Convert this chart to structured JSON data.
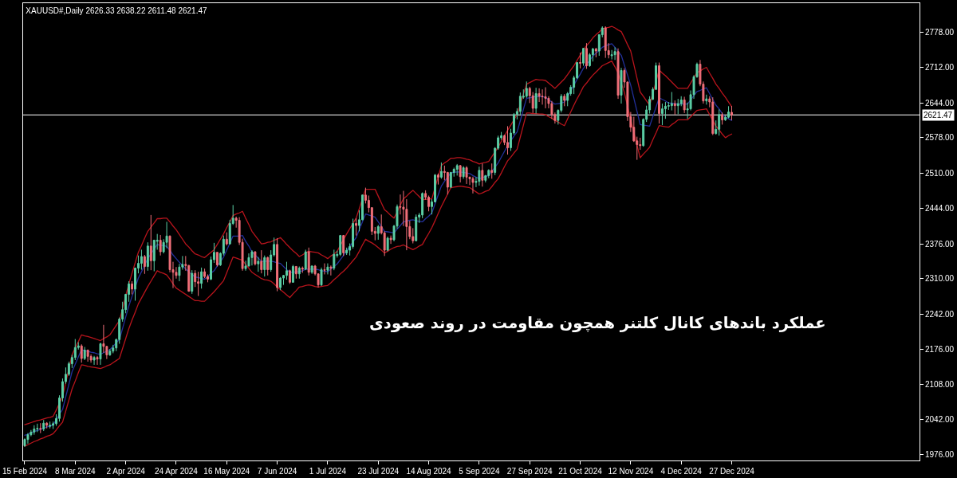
{
  "chart_data": {
    "type": "candlestick",
    "title": "XAUUSD#,Daily 2626.33 2638.22 2611.48 2621.47",
    "categories": [
      "15 Feb 2024",
      null,
      null,
      null,
      null,
      null,
      null,
      null,
      null,
      null,
      null,
      null,
      null,
      null,
      null,
      null,
      "8 Mar 2024",
      null,
      null,
      null,
      null,
      null,
      null,
      null,
      null,
      null,
      null,
      null,
      null,
      null,
      null,
      null,
      "2 Apr 2024",
      null,
      null,
      null,
      null,
      null,
      null,
      null,
      null,
      null,
      null,
      null,
      null,
      null,
      null,
      null,
      "24 Apr 2024",
      null,
      null,
      null,
      null,
      null,
      null,
      null,
      null,
      null,
      null,
      null,
      null,
      null,
      null,
      null,
      "16 May 2024",
      null,
      null,
      null,
      null,
      null,
      null,
      null,
      null,
      null,
      null,
      null,
      null,
      null,
      null,
      null,
      "7 Jun 2024",
      null,
      null,
      null,
      null,
      null,
      null,
      null,
      null,
      null,
      null,
      null,
      null,
      null,
      null,
      null,
      "1 Jul 2024",
      null,
      null,
      null,
      null,
      null,
      null,
      null,
      null,
      null,
      null,
      null,
      null,
      null,
      null,
      null,
      "23 Jul 2024",
      null,
      null,
      null,
      null,
      null,
      null,
      null,
      null,
      null,
      null,
      null,
      null,
      null,
      null,
      null,
      "14 Aug 2024",
      null,
      null,
      null,
      null,
      null,
      null,
      null,
      null,
      null,
      null,
      null,
      null,
      null,
      null,
      null,
      "5 Sep 2024",
      null,
      null,
      null,
      null,
      null,
      null,
      null,
      null,
      null,
      null,
      null,
      null,
      null,
      null,
      null,
      "27 Sep 2024",
      null,
      null,
      null,
      null,
      null,
      null,
      null,
      null,
      null,
      null,
      null,
      null,
      null,
      null,
      null,
      "21 Oct 2024",
      null,
      null,
      null,
      null,
      null,
      null,
      null,
      null,
      null,
      null,
      null,
      null,
      null,
      null,
      null,
      "12 Nov 2024",
      null,
      null,
      null,
      null,
      null,
      null,
      null,
      null,
      null,
      null,
      null,
      null,
      null,
      null,
      null,
      "4 Dec 2024",
      null,
      null,
      null,
      null,
      null,
      null,
      null,
      null,
      null,
      null,
      null,
      null,
      null,
      null,
      null,
      "27 Dec 2024"
    ],
    "ohlc": [
      [
        1992,
        2006,
        1990,
        2004
      ],
      [
        2004,
        2016,
        1996,
        2013
      ],
      [
        2013,
        2022,
        2010,
        2018
      ],
      [
        2018,
        2031,
        2013,
        2024
      ],
      [
        2024,
        2034,
        2018,
        2025
      ],
      [
        2025,
        2035,
        2016,
        2024
      ],
      [
        2024,
        2041,
        2020,
        2035
      ],
      [
        2035,
        2037,
        2025,
        2031
      ],
      [
        2029,
        2038,
        2025,
        2031
      ],
      [
        2031,
        2038,
        2024,
        2034
      ],
      [
        2034,
        2052,
        2030,
        2044
      ],
      [
        2044,
        2088,
        2038,
        2083
      ],
      [
        2083,
        2120,
        2076,
        2114
      ],
      [
        2114,
        2141,
        2110,
        2128
      ],
      [
        2128,
        2152,
        2125,
        2148
      ],
      [
        2148,
        2165,
        2140,
        2160
      ],
      [
        2160,
        2195,
        2155,
        2179
      ],
      [
        2179,
        2189,
        2175,
        2182
      ],
      [
        2182,
        2185,
        2150,
        2158
      ],
      [
        2158,
        2180,
        2155,
        2174
      ],
      [
        2174,
        2175,
        2152,
        2162
      ],
      [
        2162,
        2166,
        2150,
        2155
      ],
      [
        2155,
        2163,
        2146,
        2160
      ],
      [
        2160,
        2163,
        2146,
        2157
      ],
      [
        2157,
        2188,
        2146,
        2186
      ],
      [
        2186,
        2222,
        2169,
        2181
      ],
      [
        2181,
        2182,
        2157,
        2165
      ],
      [
        2165,
        2176,
        2163,
        2172
      ],
      [
        2172,
        2184,
        2168,
        2178
      ],
      [
        2178,
        2196,
        2172,
        2194
      ],
      [
        2194,
        2236,
        2186,
        2233
      ],
      [
        2233,
        2266,
        2228,
        2251
      ],
      [
        2251,
        2281,
        2244,
        2280
      ],
      [
        2280,
        2305,
        2266,
        2300
      ],
      [
        2300,
        2305,
        2280,
        2290
      ],
      [
        2290,
        2331,
        2268,
        2330
      ],
      [
        2330,
        2354,
        2320,
        2339
      ],
      [
        2339,
        2365,
        2327,
        2352
      ],
      [
        2352,
        2355,
        2319,
        2333
      ],
      [
        2333,
        2379,
        2325,
        2372
      ],
      [
        2372,
        2431,
        2326,
        2344
      ],
      [
        2344,
        2384,
        2324,
        2383
      ],
      [
        2381,
        2395,
        2365,
        2383
      ],
      [
        2383,
        2393,
        2354,
        2361
      ],
      [
        2361,
        2385,
        2358,
        2379
      ],
      [
        2379,
        2418,
        2368,
        2391
      ],
      [
        2391,
        2392,
        2322,
        2327
      ],
      [
        2327,
        2342,
        2292,
        2322
      ],
      [
        2322,
        2332,
        2310,
        2316
      ],
      [
        2316,
        2338,
        2305,
        2332
      ],
      [
        2332,
        2353,
        2327,
        2337
      ],
      [
        2337,
        2353,
        2325,
        2335
      ],
      [
        2335,
        2336,
        2285,
        2286
      ],
      [
        2286,
        2326,
        2281,
        2320
      ],
      [
        2320,
        2326,
        2294,
        2304
      ],
      [
        2304,
        2323,
        2277,
        2301
      ],
      [
        2301,
        2331,
        2291,
        2323
      ],
      [
        2323,
        2329,
        2311,
        2314
      ],
      [
        2314,
        2318,
        2303,
        2309
      ],
      [
        2309,
        2352,
        2307,
        2346
      ],
      [
        2346,
        2378,
        2340,
        2360
      ],
      [
        2360,
        2361,
        2333,
        2336
      ],
      [
        2336,
        2360,
        2334,
        2358
      ],
      [
        2358,
        2392,
        2354,
        2385
      ],
      [
        2385,
        2398,
        2373,
        2376
      ],
      [
        2376,
        2422,
        2375,
        2415
      ],
      [
        2415,
        2450,
        2412,
        2425
      ],
      [
        2425,
        2428,
        2407,
        2421
      ],
      [
        2421,
        2427,
        2374,
        2379
      ],
      [
        2379,
        2386,
        2325,
        2329
      ],
      [
        2329,
        2344,
        2325,
        2334
      ],
      [
        2334,
        2358,
        2333,
        2350
      ],
      [
        2350,
        2364,
        2335,
        2361
      ],
      [
        2361,
        2362,
        2335,
        2338
      ],
      [
        2338,
        2351,
        2323,
        2343
      ],
      [
        2343,
        2364,
        2320,
        2327
      ],
      [
        2327,
        2354,
        2314,
        2350
      ],
      [
        2350,
        2352,
        2316,
        2327
      ],
      [
        2327,
        2364,
        2323,
        2355
      ],
      [
        2355,
        2388,
        2352,
        2375
      ],
      [
        2375,
        2387,
        2286,
        2293
      ],
      [
        2293,
        2313,
        2288,
        2311
      ],
      [
        2311,
        2317,
        2298,
        2316
      ],
      [
        2316,
        2342,
        2308,
        2325
      ],
      [
        2325,
        2327,
        2300,
        2303
      ],
      [
        2303,
        2336,
        2302,
        2333
      ],
      [
        2333,
        2334,
        2310,
        2319
      ],
      [
        2319,
        2333,
        2310,
        2330
      ],
      [
        2330,
        2333,
        2321,
        2328
      ],
      [
        2328,
        2365,
        2326,
        2361
      ],
      [
        2361,
        2369,
        2316,
        2322
      ],
      [
        2322,
        2335,
        2319,
        2334
      ],
      [
        2334,
        2336,
        2316,
        2319
      ],
      [
        2319,
        2320,
        2293,
        2298
      ],
      [
        2298,
        2331,
        2296,
        2327
      ],
      [
        2327,
        2339,
        2318,
        2326
      ],
      [
        2326,
        2339,
        2318,
        2332
      ],
      [
        2332,
        2335,
        2316,
        2330
      ],
      [
        2330,
        2365,
        2326,
        2356
      ],
      [
        2354,
        2363,
        2350,
        2356
      ],
      [
        2356,
        2393,
        2353,
        2392
      ],
      [
        2392,
        2393,
        2353,
        2359
      ],
      [
        2359,
        2369,
        2355,
        2364
      ],
      [
        2364,
        2377,
        2354,
        2371
      ],
      [
        2371,
        2424,
        2367,
        2415
      ],
      [
        2415,
        2425,
        2392,
        2411
      ],
      [
        2411,
        2440,
        2400,
        2422
      ],
      [
        2422,
        2470,
        2421,
        2469
      ],
      [
        2469,
        2483,
        2453,
        2459
      ],
      [
        2459,
        2468,
        2436,
        2445
      ],
      [
        2445,
        2446,
        2393,
        2400
      ],
      [
        2400,
        2408,
        2383,
        2396
      ],
      [
        2396,
        2412,
        2384,
        2409
      ],
      [
        2409,
        2432,
        2394,
        2397
      ],
      [
        2397,
        2400,
        2353,
        2364
      ],
      [
        2364,
        2390,
        2362,
        2387
      ],
      [
        2387,
        2392,
        2376,
        2384
      ],
      [
        2384,
        2412,
        2381,
        2410
      ],
      [
        2410,
        2451,
        2405,
        2447
      ],
      [
        2447,
        2470,
        2432,
        2446
      ],
      [
        2446,
        2477,
        2410,
        2442
      ],
      [
        2442,
        2461,
        2364,
        2409
      ],
      [
        2409,
        2420,
        2385,
        2390
      ],
      [
        2390,
        2406,
        2377,
        2382
      ],
      [
        2382,
        2432,
        2381,
        2427
      ],
      [
        2427,
        2435,
        2416,
        2431
      ],
      [
        2431,
        2474,
        2425,
        2472
      ],
      [
        2472,
        2478,
        2460,
        2465
      ],
      [
        2465,
        2468,
        2438,
        2447
      ],
      [
        2447,
        2461,
        2432,
        2456
      ],
      [
        2456,
        2509,
        2455,
        2507
      ],
      [
        2507,
        2510,
        2489,
        2503
      ],
      [
        2503,
        2531,
        2500,
        2514
      ],
      [
        2514,
        2525,
        2497,
        2512
      ],
      [
        2512,
        2513,
        2470,
        2484
      ],
      [
        2484,
        2513,
        2482,
        2512
      ],
      [
        2512,
        2521,
        2504,
        2518
      ],
      [
        2518,
        2528,
        2506,
        2525
      ],
      [
        2525,
        2526,
        2493,
        2504
      ],
      [
        2504,
        2524,
        2500,
        2521
      ],
      [
        2521,
        2524,
        2490,
        2503
      ],
      [
        2503,
        2504,
        2488,
        2500
      ],
      [
        2500,
        2504,
        2472,
        2493
      ],
      [
        2493,
        2503,
        2484,
        2495
      ],
      [
        2495,
        2523,
        2487,
        2516
      ],
      [
        2516,
        2529,
        2485,
        2497
      ],
      [
        2497,
        2507,
        2493,
        2506
      ],
      [
        2506,
        2518,
        2501,
        2516
      ],
      [
        2516,
        2529,
        2500,
        2512
      ],
      [
        2512,
        2560,
        2507,
        2558
      ],
      [
        2558,
        2582,
        2555,
        2578
      ],
      [
        2578,
        2589,
        2574,
        2582
      ],
      [
        2582,
        2584,
        2564,
        2569
      ],
      [
        2569,
        2600,
        2546,
        2559
      ],
      [
        2559,
        2595,
        2553,
        2587
      ],
      [
        2587,
        2625,
        2584,
        2622
      ],
      [
        2622,
        2634,
        2613,
        2628
      ],
      [
        2628,
        2664,
        2622,
        2657
      ],
      [
        2655,
        2670,
        2652,
        2657
      ],
      [
        2657,
        2685,
        2654,
        2672
      ],
      [
        2672,
        2675,
        2644,
        2658
      ],
      [
        2658,
        2665,
        2625,
        2634
      ],
      [
        2634,
        2673,
        2624,
        2662
      ],
      [
        2662,
        2672,
        2646,
        2657
      ],
      [
        2657,
        2670,
        2641,
        2656
      ],
      [
        2656,
        2674,
        2634,
        2653
      ],
      [
        2653,
        2657,
        2634,
        2643
      ],
      [
        2643,
        2648,
        2614,
        2622
      ],
      [
        2622,
        2626,
        2605,
        2611
      ],
      [
        2611,
        2632,
        2603,
        2630
      ],
      [
        2630,
        2661,
        2626,
        2657
      ],
      [
        2657,
        2661,
        2638,
        2649
      ],
      [
        2649,
        2665,
        2638,
        2662
      ],
      [
        2662,
        2678,
        2658,
        2674
      ],
      [
        2674,
        2696,
        2661,
        2692
      ],
      [
        2692,
        2722,
        2690,
        2721
      ],
      [
        2721,
        2740,
        2710,
        2720
      ],
      [
        2720,
        2749,
        2715,
        2748
      ],
      [
        2748,
        2758,
        2709,
        2715
      ],
      [
        2715,
        2739,
        2713,
        2736
      ],
      [
        2736,
        2749,
        2723,
        2747
      ],
      [
        2747,
        2749,
        2731,
        2743
      ],
      [
        2743,
        2775,
        2734,
        2774
      ],
      [
        2774,
        2790,
        2769,
        2787
      ],
      [
        2787,
        2790,
        2730,
        2744
      ],
      [
        2744,
        2758,
        2729,
        2736
      ],
      [
        2734,
        2745,
        2727,
        2736
      ],
      [
        2736,
        2750,
        2726,
        2742
      ],
      [
        2742,
        2748,
        2652,
        2659
      ],
      [
        2659,
        2711,
        2643,
        2706
      ],
      [
        2706,
        2710,
        2673,
        2684
      ],
      [
        2684,
        2685,
        2610,
        2618
      ],
      [
        2618,
        2627,
        2589,
        2598
      ],
      [
        2598,
        2618,
        2570,
        2572
      ],
      [
        2572,
        2580,
        2536,
        2565
      ],
      [
        2565,
        2578,
        2555,
        2563
      ],
      [
        2563,
        2615,
        2561,
        2613
      ],
      [
        2613,
        2639,
        2608,
        2631
      ],
      [
        2631,
        2657,
        2624,
        2651
      ],
      [
        2651,
        2674,
        2650,
        2670
      ],
      [
        2670,
        2721,
        2669,
        2715
      ],
      [
        2715,
        2721,
        2605,
        2624
      ],
      [
        2624,
        2643,
        2602,
        2633
      ],
      [
        2633,
        2646,
        2614,
        2638
      ],
      [
        2638,
        2646,
        2631,
        2639
      ],
      [
        2639,
        2665,
        2630,
        2643
      ],
      [
        2643,
        2649,
        2622,
        2639
      ],
      [
        2639,
        2652,
        2623,
        2643
      ],
      [
        2643,
        2657,
        2638,
        2650
      ],
      [
        2650,
        2656,
        2625,
        2631
      ],
      [
        2631,
        2645,
        2614,
        2633
      ],
      [
        2633,
        2668,
        2630,
        2660
      ],
      [
        2660,
        2697,
        2652,
        2694
      ],
      [
        2694,
        2721,
        2692,
        2718
      ],
      [
        2718,
        2726,
        2676,
        2680
      ],
      [
        2680,
        2685,
        2643,
        2648
      ],
      [
        2648,
        2660,
        2641,
        2652
      ],
      [
        2652,
        2657,
        2636,
        2646
      ],
      [
        2646,
        2655,
        2583,
        2586
      ],
      [
        2586,
        2611,
        2584,
        2594
      ],
      [
        2594,
        2632,
        2582,
        2622
      ],
      [
        2622,
        2626,
        2603,
        2612
      ],
      [
        2612,
        2620,
        2610,
        2617
      ],
      [
        2617,
        2638,
        2615,
        2627
      ],
      [
        2626.33,
        2638.22,
        2611.48,
        2621.47
      ]
    ],
    "colors": [
      "#5ccfa6",
      "#5ccfa6",
      "#5ccfa6",
      "#5ccfa6",
      "#5ccfa6",
      "#f2707a",
      "#5ccfa6",
      "#f2707a",
      "#5ccfa6",
      "#5ccfa6",
      "#5ccfa6",
      "#5ccfa6",
      "#5ccfa6",
      "#5ccfa6",
      "#5ccfa6",
      "#5ccfa6",
      "#5ccfa6",
      "#5ccfa6",
      "#f2707a",
      "#5ccfa6",
      "#f2707a",
      "#f2707a",
      "#5ccfa6",
      "#f2707a",
      "#5ccfa6",
      "#f2707a",
      "#f2707a",
      "#5ccfa6",
      "#5ccfa6",
      "#5ccfa6",
      "#5ccfa6",
      "#5ccfa6",
      "#5ccfa6",
      "#5ccfa6",
      "#f2707a",
      "#5ccfa6",
      "#5ccfa6",
      "#5ccfa6",
      "#f2707a",
      "#5ccfa6",
      "#f2707a",
      "#5ccfa6",
      "#5ccfa6",
      "#f2707a",
      "#5ccfa6",
      "#5ccfa6",
      "#f2707a",
      "#f2707a",
      "#f2707a",
      "#5ccfa6",
      "#5ccfa6",
      "#f2707a",
      "#f2707a",
      "#5ccfa6",
      "#f2707a",
      "#f2707a",
      "#5ccfa6",
      "#f2707a",
      "#f2707a",
      "#5ccfa6",
      "#5ccfa6",
      "#f2707a",
      "#5ccfa6",
      "#5ccfa6",
      "#f2707a",
      "#5ccfa6",
      "#5ccfa6",
      "#f2707a",
      "#f2707a",
      "#f2707a",
      "#5ccfa6",
      "#5ccfa6",
      "#5ccfa6",
      "#f2707a",
      "#5ccfa6",
      "#f2707a",
      "#5ccfa6",
      "#f2707a",
      "#5ccfa6",
      "#5ccfa6",
      "#f2707a",
      "#5ccfa6",
      "#5ccfa6",
      "#5ccfa6",
      "#f2707a",
      "#5ccfa6",
      "#f2707a",
      "#5ccfa6",
      "#f2707a",
      "#5ccfa6",
      "#f2707a",
      "#5ccfa6",
      "#f2707a",
      "#f2707a",
      "#5ccfa6",
      "#f2707a",
      "#5ccfa6",
      "#f2707a",
      "#5ccfa6",
      "#5ccfa6",
      "#5ccfa6",
      "#f2707a",
      "#5ccfa6",
      "#5ccfa6",
      "#5ccfa6",
      "#f2707a",
      "#5ccfa6",
      "#5ccfa6",
      "#f2707a",
      "#f2707a",
      "#f2707a",
      "#f2707a",
      "#5ccfa6",
      "#f2707a",
      "#f2707a",
      "#5ccfa6",
      "#f2707a",
      "#5ccfa6",
      "#5ccfa6",
      "#f2707a",
      "#f2707a",
      "#f2707a",
      "#f2707a",
      "#f2707a",
      "#5ccfa6",
      "#5ccfa6",
      "#5ccfa6",
      "#f2707a",
      "#f2707a",
      "#5ccfa6",
      "#5ccfa6",
      "#f2707a",
      "#5ccfa6",
      "#f2707a",
      "#f2707a",
      "#5ccfa6",
      "#5ccfa6",
      "#5ccfa6",
      "#f2707a",
      "#5ccfa6",
      "#f2707a",
      "#f2707a",
      "#f2707a",
      "#5ccfa6",
      "#5ccfa6",
      "#f2707a",
      "#5ccfa6",
      "#5ccfa6",
      "#f2707a",
      "#5ccfa6",
      "#5ccfa6",
      "#5ccfa6",
      "#f2707a",
      "#f2707a",
      "#5ccfa6",
      "#5ccfa6",
      "#5ccfa6",
      "#5ccfa6",
      "#5ccfa6",
      "#5ccfa6",
      "#f2707a",
      "#f2707a",
      "#5ccfa6",
      "#f2707a",
      "#f2707a",
      "#f2707a",
      "#f2707a",
      "#f2707a",
      "#f2707a",
      "#5ccfa6",
      "#5ccfa6",
      "#f2707a",
      "#5ccfa6",
      "#5ccfa6",
      "#5ccfa6",
      "#5ccfa6",
      "#f2707a",
      "#5ccfa6",
      "#f2707a",
      "#5ccfa6",
      "#5ccfa6",
      "#f2707a",
      "#5ccfa6",
      "#5ccfa6",
      "#f2707a",
      "#f2707a",
      "#5ccfa6",
      "#5ccfa6",
      "#f2707a",
      "#5ccfa6",
      "#f2707a",
      "#f2707a",
      "#f2707a",
      "#f2707a",
      "#f2707a",
      "#f2707a",
      "#5ccfa6",
      "#5ccfa6",
      "#5ccfa6",
      "#5ccfa6",
      "#5ccfa6",
      "#f2707a",
      "#5ccfa6",
      "#5ccfa6",
      "#5ccfa6",
      "#5ccfa6",
      "#f2707a",
      "#5ccfa6",
      "#5ccfa6",
      "#f2707a",
      "#5ccfa6",
      "#5ccfa6",
      "#5ccfa6",
      "#5ccfa6",
      "#f2707a",
      "#f2707a",
      "#5ccfa6",
      "#f2707a",
      "#f2707a",
      "#5ccfa6",
      "#5ccfa6",
      "#f2707a",
      "#5ccfa6",
      "#5ccfa6",
      "#f2707a"
    ],
    "series": [
      {
        "type": "line",
        "color": "#b8141c",
        "values": [
          2032,
          2034,
          2036,
          2038,
          2040,
          2041,
          2043,
          2045,
          2046,
          2048,
          2060,
          2073,
          2085,
          2112,
          2138,
          2165,
          2178,
          2190,
          2203,
          2201,
          2200,
          2198,
          2196,
          2194,
          2192,
          2196,
          2199,
          2203,
          2212,
          2221,
          2230,
          2253,
          2277,
          2300,
          2320,
          2340,
          2360,
          2373,
          2387,
          2400,
          2408,
          2416,
          2424,
          2424,
          2425,
          2425,
          2418,
          2410,
          2403,
          2394,
          2385,
          2376,
          2370,
          2363,
          2357,
          2355,
          2352,
          2350,
          2355,
          2360,
          2365,
          2375,
          2385,
          2395,
          2407,
          2418,
          2430,
          2433,
          2435,
          2438,
          2425,
          2413,
          2400,
          2392,
          2384,
          2376,
          2377,
          2379,
          2380,
          2383,
          2385,
          2388,
          2382,
          2375,
          2369,
          2363,
          2358,
          2352,
          2355,
          2359,
          2362,
          2361,
          2360,
          2359,
          2355,
          2352,
          2348,
          2353,
          2357,
          2362,
          2373,
          2384,
          2395,
          2405,
          2415,
          2425,
          2443,
          2462,
          2480,
          2480,
          2480,
          2480,
          2467,
          2454,
          2441,
          2436,
          2430,
          2425,
          2437,
          2450,
          2462,
          2467,
          2473,
          2478,
          2472,
          2466,
          2460,
          2461,
          2461,
          2462,
          2483,
          2504,
          2525,
          2530,
          2534,
          2539,
          2539,
          2540,
          2540,
          2539,
          2537,
          2536,
          2533,
          2531,
          2528,
          2530,
          2531,
          2533,
          2542,
          2551,
          2560,
          2571,
          2581,
          2592,
          2602,
          2612,
          2622,
          2641,
          2661,
          2680,
          2683,
          2686,
          2689,
          2688,
          2688,
          2687,
          2682,
          2677,
          2672,
          2678,
          2684,
          2690,
          2698,
          2707,
          2715,
          2725,
          2735,
          2745,
          2753,
          2760,
          2768,
          2774,
          2779,
          2785,
          2787,
          2788,
          2790,
          2787,
          2783,
          2780,
          2768,
          2755,
          2743,
          2717,
          2691,
          2665,
          2657,
          2648,
          2640,
          2662,
          null,
          2707,
          2701,
          2696,
          2690,
          2684,
          2678,
          2672,
          2672,
          2672,
          2672,
          2682,
          2692,
          2702,
          2705,
          2709,
          2712,
          2701,
          2691,
          2680,
          2672,
          2663,
          2655,
          2646,
          2637
        ]
      },
      {
        "type": "line",
        "color": "#22309a",
        "values": [
          2012,
          2014,
          2017,
          2019,
          2021,
          2023,
          2025,
          2028,
          2029,
          2032,
          2041,
          2052,
          2061,
          2085,
          2109,
          2133,
          2147,
          2161,
          2175,
          2173,
          2172,
          2170,
          2169,
          2167,
          2166,
          2169,
          2172,
          2175,
          2181,
          2188,
          2194,
          2215,
          2237,
          2258,
          2276,
          2293,
          2311,
          2323,
          2336,
          2348,
          2357,
          2366,
          2375,
          2373,
          2373,
          2371,
          2364,
          2355,
          2348,
          2341,
          2335,
          2328,
          2323,
          2318,
          2313,
          2312,
          2310,
          2309,
          2314,
          2320,
          2325,
          2334,
          2342,
          2351,
          2364,
          2377,
          2391,
          2391,
          2391,
          2392,
          2381,
          2372,
          2361,
          2355,
          2349,
          2343,
          2343,
          2343,
          2343,
          2342,
          2340,
          2339,
          2333,
          2327,
          2322,
          2322,
          2323,
          2323,
          2325,
          2328,
          null,
          null,
          2328,
          2327,
          2325,
          2324,
          2323,
          2328,
          2333,
          2338,
          2346,
          2354,
          2363,
          2371,
          2380,
          2388,
          2403,
          2418,
          2433,
          2431,
          2429,
          2427,
          2418,
          2409,
          2400,
          2399,
          2398,
          2397,
          2404,
          2411,
          2418,
          2419,
          2421,
          2422,
          2420,
          2419,
          2418,
          2424,
          2429,
          2435,
          2452,
          2469,
          2486,
          2495,
          2503,
          2511,
          2512,
          2513,
          2513,
          null,
          2511,
          2510,
          2506,
          2503,
          2500,
          null,
          2504,
          2506,
          2514,
          2522,
          2530,
          2541,
          2552,
          2563,
          2572,
          2581,
          2589,
          2610,
          2632,
          2653,
          2654,
          2655,
          2657,
          2656,
          2656,
          2655,
          2650,
          2646,
          2642,
          2643,
          2644,
          2646,
          2656,
          2667,
          2678,
          2689,
          2699,
          2710,
          2718,
          2725,
          2733,
          2739,
          2744,
          2750,
          2753,
          2755,
          2757,
          2750,
          2742,
          2735,
          2716,
          2697,
          2678,
          2653,
          2628,
          2603,
          2602,
          2601,
          2600,
          2618,
          2636,
          2654,
          2651,
          2648,
          2644,
          2644,
          2643,
          2642,
          2642,
          2642,
          2642,
          2650,
          2658,
          2666,
          2668,
          2671,
          2673,
          2662,
          2651,
          2640,
          2633,
          2624,
          2617,
          2614,
          2611
        ]
      },
      {
        "type": "line",
        "color": "#b8141c",
        "values": [
          1991,
          1994,
          1997,
          2000,
          2002,
          2005,
          2007,
          2010,
          2012,
          2015,
          2022,
          2030,
          2037,
          2058,
          2079,
          2100,
          2115,
          2131,
          2146,
          2145,
          2143,
          2142,
          2141,
          2140,
          2139,
          2141,
          2144,
          2146,
          2150,
          2154,
          2158,
          2177,
          2196,
          2215,
          2231,
          2246,
          2262,
          2273,
          2284,
          2295,
          2305,
          2315,
          2325,
          2322,
          2320,
          2317,
          2309,
          2300,
          2292,
          2288,
          2284,
          2280,
          2276,
          2272,
          2268,
          2268,
          2267,
          2267,
          2273,
          2279,
          2285,
          2292,
          2299,
          2306,
          2321,
          2336,
          2351,
          2349,
          2347,
          2345,
          2337,
          2330,
          2322,
          2318,
          2314,
          2310,
          2308,
          2307,
          2305,
          2300,
          2294,
          2289,
          2284,
          2279,
          2274,
          2281,
          2287,
          2294,
          2295,
          2297,
          2298,
          2297,
          2295,
          2294,
          2295,
          2296,
          2297,
          2302,
          2308,
          2313,
          2319,
          2324,
          2330,
          2337,
          2344,
          2351,
          2362,
          2374,
          2385,
          2381,
          2378,
          2374,
          2369,
          2364,
          2359,
          2362,
          2366,
          2369,
          2371,
          2372,
          2374,
          2371,
          2368,
          2365,
          2368,
          2372,
          2375,
          2386,
          2396,
          2407,
          2420,
          2434,
          2447,
          2459,
          2471,
          2483,
          2484,
          2485,
          2486,
          2485,
          2484,
          2483,
          2479,
          2475,
          2471,
          2473,
          2476,
          2478,
          2485,
          2493,
          2500,
          2511,
          2523,
          2534,
          2541,
          2549,
          2556,
          2579,
          2602,
          2625,
          2625,
          2624,
          2624,
          2623,
          2623,
          2622,
          2618,
          2615,
          2611,
          2608,
          2604,
          2601,
          2614,
          2627,
          2640,
          2652,
          2663,
          2675,
          2682,
          2690,
          2697,
          2703,
          2709,
          2715,
          2718,
          2721,
          2724,
          2713,
          2701,
          null,
          2664,
          2638,
          2612,
          2588,
          2564,
          2540,
          2547,
          2553,
          2560,
          2574,
          2587,
          2601,
          2600,
          2599,
          2598,
          2603,
          2607,
          2612,
          2612,
          2612,
          2612,
          2618,
          2624,
          2630,
          2631,
          2632,
          2633,
          2622,
          2611,
          2600,
          2593,
          2585,
          2578,
          2582,
          2585
        ]
      }
    ],
    "ylim": [
      1964,
      2834
    ],
    "yticks": [
      {
        "value": 1976,
        "label": "1976.00"
      },
      {
        "value": 2042,
        "label": "2042.00"
      },
      {
        "value": 2108,
        "label": "2108.00"
      },
      {
        "value": 2176,
        "label": "2176.00"
      },
      {
        "value": 2242,
        "label": "2242.00"
      },
      {
        "value": 2310,
        "label": "2310.00"
      },
      {
        "value": 2376,
        "label": "2376.00"
      },
      {
        "value": 2444,
        "label": "2444.00"
      },
      {
        "value": 2510,
        "label": "2510.00"
      },
      {
        "value": 2578,
        "label": "2578.00"
      },
      {
        "value": 2644,
        "label": "2644.00"
      },
      {
        "value": 2712,
        "label": "2712.00"
      },
      {
        "value": 2778,
        "label": "2778.00"
      }
    ],
    "ref_lines": [
      {
        "axis": "y",
        "value": 2621.47,
        "label": "2621.47",
        "color": "#ffffff"
      }
    ],
    "annotations": [
      "عملکرد باندهای کانال کلتنر همچون مقاومت در روند صعودی"
    ]
  }
}
